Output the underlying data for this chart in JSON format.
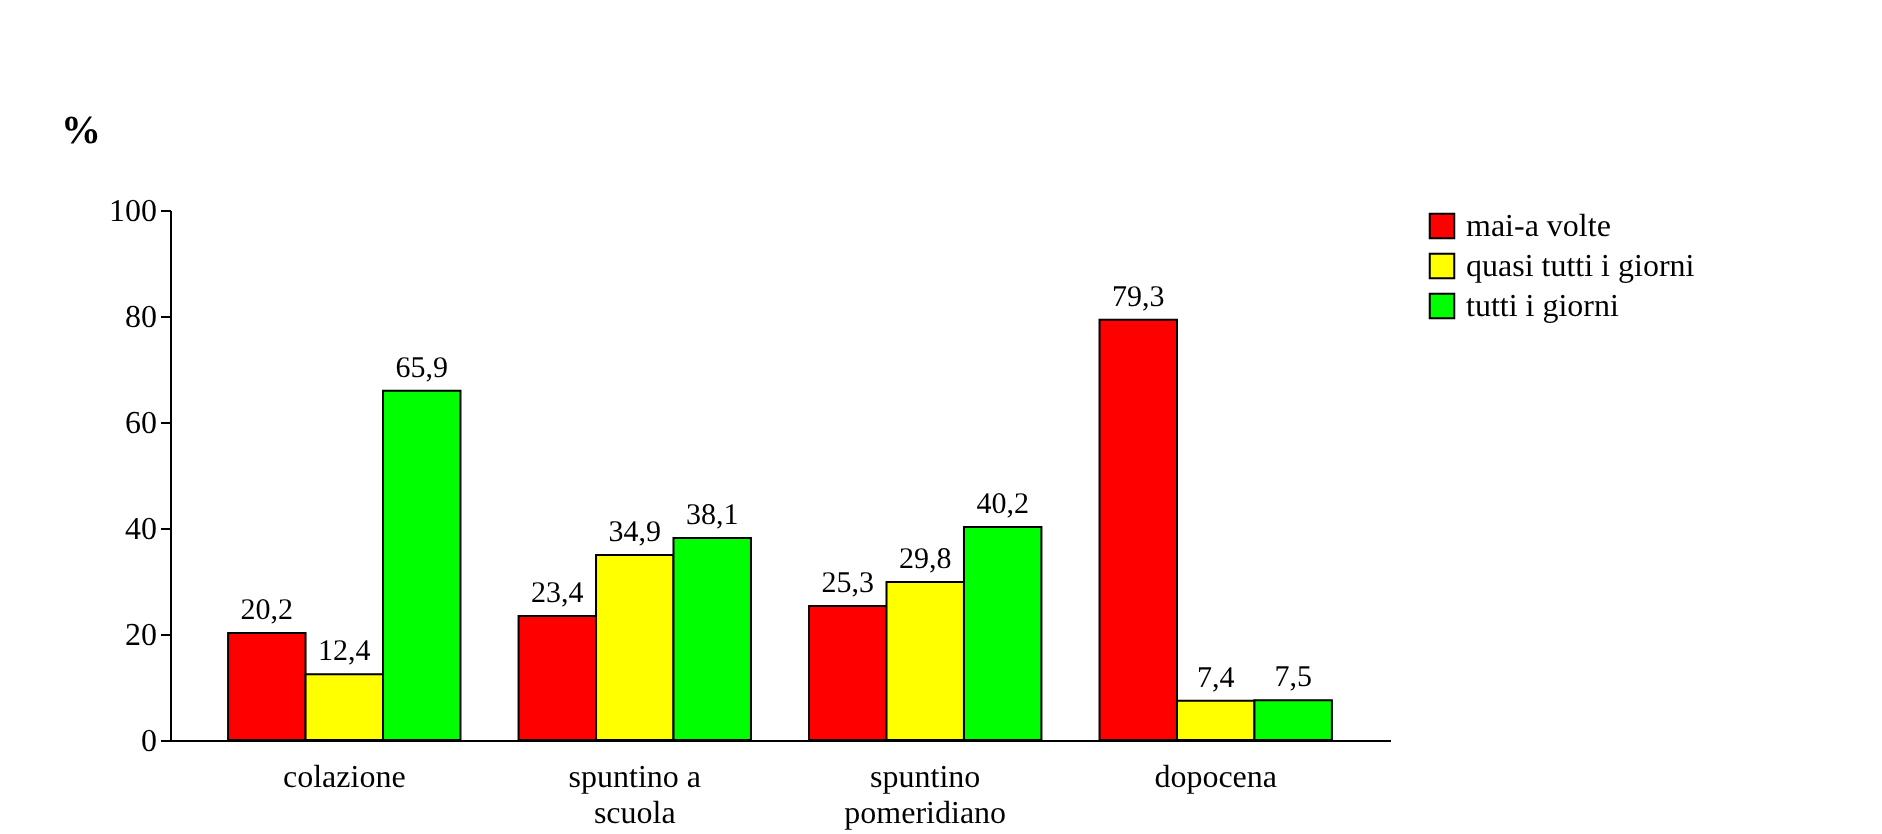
{
  "chart_data": {
    "type": "bar",
    "ylabel": "%",
    "categories": [
      "colazione",
      "spuntino a scuola",
      "spuntino pomeridiano",
      "dopocena"
    ],
    "series": [
      {
        "name": "mai-a volte",
        "color": "#ff0000",
        "values": [
          20.2,
          23.4,
          25.3,
          79.3
        ],
        "value_labels": [
          "20,2",
          "23,4",
          "25,3",
          "79,3"
        ]
      },
      {
        "name": "quasi tutti i giorni",
        "color": "#ffff00",
        "values": [
          12.4,
          34.9,
          29.8,
          7.4
        ],
        "value_labels": [
          "12,4",
          "34,9",
          "29,8",
          "7,4"
        ]
      },
      {
        "name": "tutti i giorni",
        "color": "#00ff00",
        "values": [
          65.9,
          38.1,
          40.2,
          7.5
        ],
        "value_labels": [
          "65,9",
          "38,1",
          "40,2",
          "7,5"
        ]
      }
    ],
    "ylim": [
      0,
      100
    ],
    "yticks": [
      0,
      20,
      40,
      60,
      80,
      100
    ],
    "grid": false,
    "legend": "right"
  }
}
